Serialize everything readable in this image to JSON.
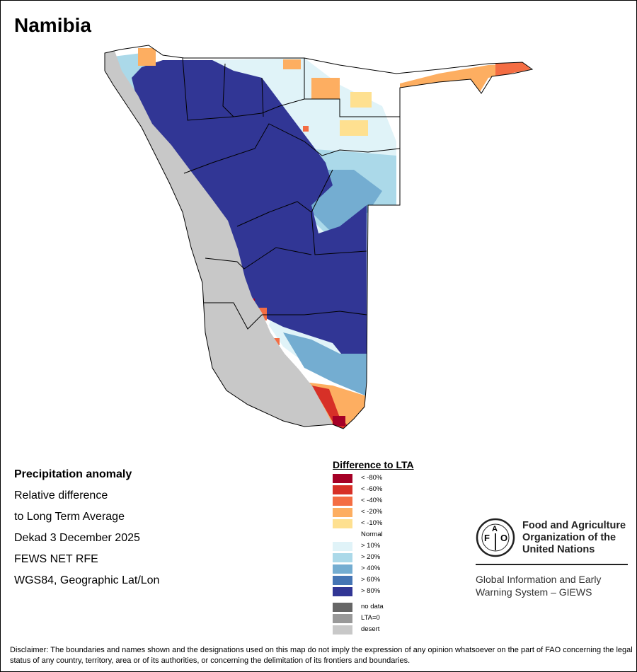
{
  "title": "Namibia",
  "info": {
    "heading": "Precipitation anomaly",
    "line1": "Relative difference",
    "line2": "to Long Term Average",
    "period": "Dekad 3 December 2025",
    "source": "FEWS NET RFE",
    "projection": "WGS84, Geographic Lat/Lon"
  },
  "legend": {
    "title": "Difference to LTA",
    "items": [
      {
        "label": "< -80%",
        "color": "#a50026"
      },
      {
        "label": "< -60%",
        "color": "#d73027"
      },
      {
        "label": "< -40%",
        "color": "#f46d43"
      },
      {
        "label": "< -20%",
        "color": "#fdae61"
      },
      {
        "label": "< -10%",
        "color": "#fee090"
      },
      {
        "label": "Normal",
        "color": "#ffffff"
      },
      {
        "label": "> 10%",
        "color": "#e0f3f8"
      },
      {
        "label": "> 20%",
        "color": "#abd9e9"
      },
      {
        "label": "> 40%",
        "color": "#74add1"
      },
      {
        "label": "> 60%",
        "color": "#4575b4"
      },
      {
        "label": "> 80%",
        "color": "#313695"
      }
    ],
    "extra": [
      {
        "label": "no data",
        "color": "#666666"
      },
      {
        "label": "LTA=0",
        "color": "#999999"
      },
      {
        "label": "desert",
        "color": "#c8c8c8"
      }
    ]
  },
  "fao": {
    "logo_text": "FAO FIAT PANIS",
    "name_line1": "Food and Agriculture",
    "name_line2": "Organization of the",
    "name_line3": "United Nations",
    "giews_line1": "Global Information and Early",
    "giews_line2": "Warning System – GIEWS"
  },
  "disclaimer": "Disclaimer: The boundaries and names shown and the designations used on this map do not imply the expression of any opinion whatsoever on the part of FAO concerning the legal status of any country, territory, area or of its authorities, or concerning the delimitation of its frontiers and boundaries."
}
